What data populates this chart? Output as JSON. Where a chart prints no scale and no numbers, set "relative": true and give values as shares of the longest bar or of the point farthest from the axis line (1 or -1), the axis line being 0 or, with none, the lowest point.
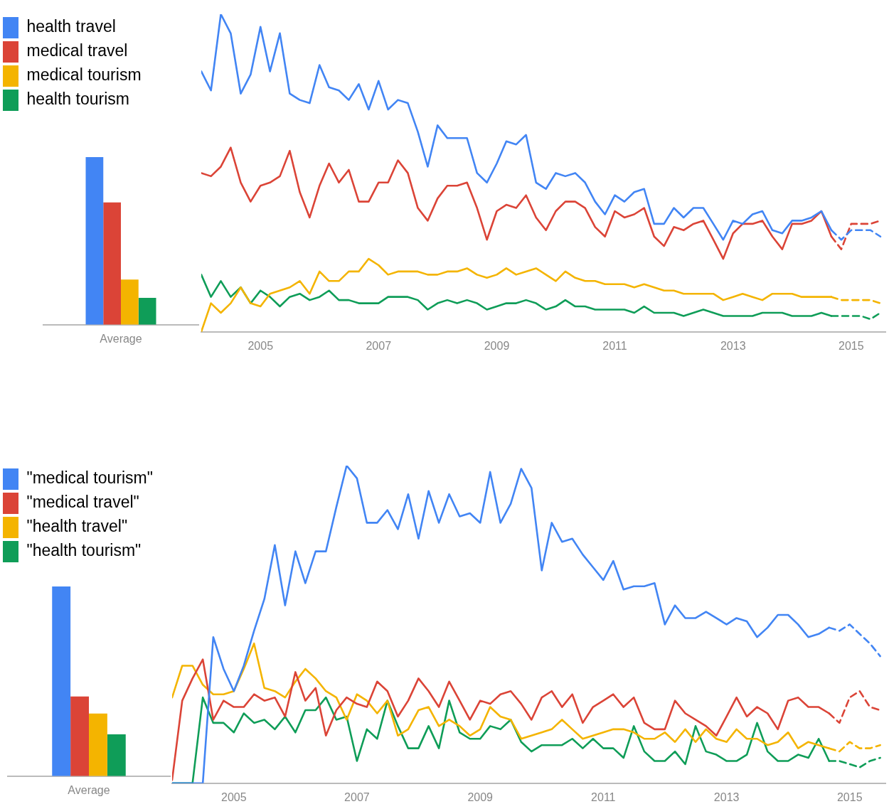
{
  "chart_data": [
    {
      "type": "bar",
      "relative": true,
      "categories": [
        "Average"
      ],
      "series": [
        {
          "color": "#4285f4",
          "values": [
            1
          ]
        },
        {
          "color": "#db4437",
          "values": [
            0.73
          ]
        },
        {
          "color": "#f4b400",
          "values": [
            0.27
          ]
        },
        {
          "color": "#0f9d58",
          "values": [
            0.16
          ]
        }
      ]
    },
    {
      "type": "line",
      "relative": true,
      "marker": "none",
      "legend": "top left",
      "x": [
        "2004-01",
        "2004-03",
        "2004-05",
        "2004-07",
        "2004-09",
        "2004-11",
        "2005-01",
        "2005-03",
        "2005-05",
        "2005-07",
        "2005-09",
        "2005-11",
        "2006-01",
        "2006-03",
        "2006-05",
        "2006-07",
        "2006-09",
        "2006-11",
        "2007-01",
        "2007-03",
        "2007-05",
        "2007-07",
        "2007-09",
        "2007-11",
        "2008-01",
        "2008-03",
        "2008-05",
        "2008-07",
        "2008-09",
        "2008-11",
        "2009-01",
        "2009-03",
        "2009-05",
        "2009-07",
        "2009-09",
        "2009-11",
        "2010-01",
        "2010-03",
        "2010-05",
        "2010-07",
        "2010-09",
        "2010-11",
        "2011-01",
        "2011-03",
        "2011-05",
        "2011-07",
        "2011-09",
        "2011-11",
        "2012-01",
        "2012-03",
        "2012-05",
        "2012-07",
        "2012-09",
        "2012-11",
        "2013-01",
        "2013-03",
        "2013-05",
        "2013-07",
        "2013-09",
        "2013-11",
        "2014-01",
        "2014-03",
        "2014-05",
        "2014-07",
        "2014-09"
      ],
      "xlim": [
        "2004-01",
        "2015-08"
      ],
      "xticks": [
        {
          "value": "2005",
          "label": "2005"
        },
        {
          "value": "2007",
          "label": "2007"
        },
        {
          "value": "2009",
          "label": "2009"
        },
        {
          "value": "2011",
          "label": "2011"
        },
        {
          "value": "2013",
          "label": "2013"
        },
        {
          "value": "2015",
          "label": "2015"
        }
      ],
      "series": [
        {
          "name": "health travel",
          "color": "#4285f4",
          "values": [
            0.82,
            0.76,
            1,
            0.94,
            0.75,
            0.81,
            0.96,
            0.82,
            0.94,
            0.75,
            0.73,
            0.72,
            0.84,
            0.77,
            0.76,
            0.73,
            0.78,
            0.7,
            0.79,
            0.7,
            0.73,
            0.72,
            0.63,
            0.52,
            0.65,
            0.61,
            0.61,
            0.61,
            0.5,
            0.47,
            0.53,
            0.6,
            0.59,
            0.62,
            0.47,
            0.45,
            0.5,
            0.49,
            0.5,
            0.47,
            0.41,
            0.37,
            0.43,
            0.41,
            0.44,
            0.45,
            0.34,
            0.34,
            0.39,
            0.36,
            0.39,
            0.39,
            0.34,
            0.29,
            0.35,
            0.34,
            0.37,
            0.38,
            0.32,
            0.31,
            0.35,
            0.35,
            0.36,
            0.38,
            0.32
          ]
        },
        {
          "name": "medical travel",
          "color": "#db4437",
          "values": [
            0.5,
            0.49,
            0.52,
            0.58,
            0.47,
            0.41,
            0.46,
            0.47,
            0.49,
            0.57,
            0.44,
            0.36,
            0.46,
            0.53,
            0.47,
            0.51,
            0.41,
            0.41,
            0.47,
            0.47,
            0.54,
            0.5,
            0.39,
            0.35,
            0.42,
            0.46,
            0.46,
            0.47,
            0.39,
            0.29,
            0.38,
            0.4,
            0.39,
            0.43,
            0.36,
            0.32,
            0.38,
            0.41,
            0.41,
            0.39,
            0.33,
            0.3,
            0.38,
            0.36,
            0.37,
            0.39,
            0.3,
            0.27,
            0.33,
            0.32,
            0.34,
            0.35,
            0.29,
            0.23,
            0.31,
            0.34,
            0.34,
            0.35,
            0.3,
            0.26,
            0.34,
            0.34,
            0.35,
            0.38,
            0.3
          ]
        },
        {
          "name": "medical tourism",
          "color": "#f4b400",
          "values": [
            0,
            0.09,
            0.06,
            0.09,
            0.14,
            0.09,
            0.08,
            0.12,
            0.13,
            0.14,
            0.16,
            0.12,
            0.19,
            0.16,
            0.16,
            0.19,
            0.19,
            0.23,
            0.21,
            0.18,
            0.19,
            0.19,
            0.19,
            0.18,
            0.18,
            0.19,
            0.19,
            0.2,
            0.18,
            0.17,
            0.18,
            0.2,
            0.18,
            0.19,
            0.2,
            0.18,
            0.16,
            0.19,
            0.17,
            0.16,
            0.16,
            0.15,
            0.15,
            0.15,
            0.14,
            0.15,
            0.14,
            0.13,
            0.13,
            0.12,
            0.12,
            0.12,
            0.12,
            0.1,
            0.11,
            0.12,
            0.11,
            0.1,
            0.12,
            0.12,
            0.12,
            0.11,
            0.11,
            0.11,
            0.11
          ]
        },
        {
          "name": "health tourism",
          "color": "#0f9d58",
          "values": [
            0.18,
            0.11,
            0.16,
            0.11,
            0.14,
            0.09,
            0.13,
            0.11,
            0.08,
            0.11,
            0.12,
            0.1,
            0.11,
            0.13,
            0.1,
            0.1,
            0.09,
            0.09,
            0.09,
            0.11,
            0.11,
            0.11,
            0.1,
            0.07,
            0.09,
            0.1,
            0.09,
            0.1,
            0.09,
            0.07,
            0.08,
            0.09,
            0.09,
            0.1,
            0.09,
            0.07,
            0.08,
            0.1,
            0.08,
            0.08,
            0.07,
            0.07,
            0.07,
            0.07,
            0.06,
            0.08,
            0.06,
            0.06,
            0.06,
            0.05,
            0.06,
            0.07,
            0.06,
            0.05,
            0.05,
            0.05,
            0.05,
            0.06,
            0.06,
            0.06,
            0.05,
            0.05,
            0.05,
            0.06,
            0.05
          ]
        },
        {
          "color": "#4285f4",
          "line_style": "dashed",
          "x": [
            "2014-09",
            "2014-11",
            "2015-01",
            "2015-03",
            "2015-05",
            "2015-07"
          ],
          "values": [
            0.32,
            0.29,
            0.32,
            0.32,
            0.32,
            0.3
          ]
        },
        {
          "color": "#db4437",
          "line_style": "dashed",
          "x": [
            "2014-09",
            "2014-11",
            "2015-01",
            "2015-03",
            "2015-05",
            "2015-07"
          ],
          "values": [
            0.3,
            0.26,
            0.34,
            0.34,
            0.34,
            0.35
          ]
        },
        {
          "color": "#f4b400",
          "line_style": "dashed",
          "x": [
            "2014-09",
            "2014-11",
            "2015-01",
            "2015-03",
            "2015-05",
            "2015-07"
          ],
          "values": [
            0.11,
            0.1,
            0.1,
            0.1,
            0.1,
            0.09
          ]
        },
        {
          "color": "#0f9d58",
          "line_style": "dashed",
          "x": [
            "2014-09",
            "2014-11",
            "2015-01",
            "2015-03",
            "2015-05",
            "2015-07"
          ],
          "values": [
            0.05,
            0.05,
            0.05,
            0.05,
            0.04,
            0.06
          ]
        }
      ]
    },
    {
      "type": "bar",
      "relative": true,
      "categories": [
        "Average"
      ],
      "series": [
        {
          "color": "#4285f4",
          "values": [
            1
          ]
        },
        {
          "color": "#db4437",
          "values": [
            0.42
          ]
        },
        {
          "color": "#f4b400",
          "values": [
            0.33
          ]
        },
        {
          "color": "#0f9d58",
          "values": [
            0.22
          ]
        }
      ]
    },
    {
      "type": "line",
      "relative": true,
      "marker": "none",
      "legend": "top left",
      "x": [
        "2004-01",
        "2004-03",
        "2004-05",
        "2004-07",
        "2004-09",
        "2004-11",
        "2005-01",
        "2005-03",
        "2005-05",
        "2005-07",
        "2005-09",
        "2005-11",
        "2006-01",
        "2006-03",
        "2006-05",
        "2006-07",
        "2006-09",
        "2006-11",
        "2007-01",
        "2007-03",
        "2007-05",
        "2007-07",
        "2007-09",
        "2007-11",
        "2008-01",
        "2008-03",
        "2008-05",
        "2008-07",
        "2008-09",
        "2008-11",
        "2009-01",
        "2009-03",
        "2009-05",
        "2009-07",
        "2009-09",
        "2009-11",
        "2010-01",
        "2010-03",
        "2010-05",
        "2010-07",
        "2010-09",
        "2010-11",
        "2011-01",
        "2011-03",
        "2011-05",
        "2011-07",
        "2011-09",
        "2011-11",
        "2012-01",
        "2012-03",
        "2012-05",
        "2012-07",
        "2012-09",
        "2012-11",
        "2013-01",
        "2013-03",
        "2013-05",
        "2013-07",
        "2013-09",
        "2013-11",
        "2014-01",
        "2014-03",
        "2014-05",
        "2014-07",
        "2014-09"
      ],
      "xlim": [
        "2004-01",
        "2015-08"
      ],
      "xticks": [
        {
          "value": "2005",
          "label": "2005"
        },
        {
          "value": "2007",
          "label": "2007"
        },
        {
          "value": "2009",
          "label": "2009"
        },
        {
          "value": "2011",
          "label": "2011"
        },
        {
          "value": "2013",
          "label": "2013"
        },
        {
          "value": "2015",
          "label": "2015"
        }
      ],
      "series": [
        {
          "name": "\"medical tourism\"",
          "color": "#4285f4",
          "values": [
            0,
            0,
            0,
            0,
            0.46,
            0.36,
            0.29,
            0.37,
            0.48,
            0.58,
            0.75,
            0.56,
            0.73,
            0.63,
            0.73,
            0.73,
            0.87,
            1,
            0.96,
            0.82,
            0.82,
            0.86,
            0.8,
            0.91,
            0.77,
            0.92,
            0.82,
            0.91,
            0.84,
            0.85,
            0.82,
            0.98,
            0.82,
            0.88,
            0.99,
            0.93,
            0.67,
            0.82,
            0.76,
            0.77,
            0.72,
            0.68,
            0.64,
            0.7,
            0.61,
            0.62,
            0.62,
            0.63,
            0.5,
            0.56,
            0.52,
            0.52,
            0.54,
            0.52,
            0.5,
            0.52,
            0.51,
            0.46,
            0.49,
            0.53,
            0.53,
            0.5,
            0.46,
            0.47,
            0.49
          ]
        },
        {
          "name": "\"medical travel\"",
          "color": "#db4437",
          "values": [
            0.01,
            0.26,
            0.33,
            0.39,
            0.2,
            0.26,
            0.24,
            0.24,
            0.28,
            0.26,
            0.27,
            0.21,
            0.35,
            0.26,
            0.3,
            0.15,
            0.23,
            0.27,
            0.25,
            0.24,
            0.32,
            0.29,
            0.21,
            0.26,
            0.33,
            0.29,
            0.24,
            0.32,
            0.26,
            0.2,
            0.26,
            0.25,
            0.28,
            0.29,
            0.25,
            0.2,
            0.27,
            0.29,
            0.24,
            0.28,
            0.19,
            0.24,
            0.26,
            0.28,
            0.24,
            0.27,
            0.19,
            0.17,
            0.17,
            0.26,
            0.22,
            0.2,
            0.18,
            0.15,
            0.21,
            0.27,
            0.21,
            0.24,
            0.22,
            0.17,
            0.26,
            0.27,
            0.24,
            0.24,
            0.22
          ]
        },
        {
          "name": "\"health travel\"",
          "color": "#f4b400",
          "values": [
            0.27,
            0.37,
            0.37,
            0.31,
            0.28,
            0.28,
            0.29,
            0.36,
            0.44,
            0.3,
            0.29,
            0.27,
            0.32,
            0.36,
            0.33,
            0.29,
            0.27,
            0.2,
            0.28,
            0.26,
            0.22,
            0.26,
            0.15,
            0.17,
            0.23,
            0.24,
            0.18,
            0.2,
            0.18,
            0.15,
            0.17,
            0.24,
            0.21,
            0.2,
            0.14,
            0.15,
            0.16,
            0.17,
            0.2,
            0.17,
            0.14,
            0.15,
            0.16,
            0.17,
            0.17,
            0.16,
            0.14,
            0.14,
            0.16,
            0.13,
            0.17,
            0.13,
            0.17,
            0.14,
            0.13,
            0.17,
            0.14,
            0.14,
            0.12,
            0.13,
            0.16,
            0.11,
            0.13,
            0.12,
            0.11
          ]
        },
        {
          "name": "\"health tourism\"",
          "color": "#0f9d58",
          "values": [
            0,
            0,
            0,
            0.27,
            0.19,
            0.19,
            0.16,
            0.22,
            0.19,
            0.2,
            0.17,
            0.21,
            0.16,
            0.23,
            0.23,
            0.27,
            0.2,
            0.21,
            0.07,
            0.17,
            0.14,
            0.26,
            0.18,
            0.11,
            0.11,
            0.18,
            0.11,
            0.26,
            0.16,
            0.14,
            0.14,
            0.18,
            0.17,
            0.2,
            0.13,
            0.1,
            0.12,
            0.12,
            0.12,
            0.14,
            0.11,
            0.14,
            0.11,
            0.11,
            0.08,
            0.18,
            0.1,
            0.07,
            0.07,
            0.1,
            0.06,
            0.18,
            0.1,
            0.09,
            0.07,
            0.07,
            0.09,
            0.19,
            0.1,
            0.07,
            0.07,
            0.09,
            0.08,
            0.14,
            0.07
          ]
        },
        {
          "color": "#4285f4",
          "line_style": "dashed",
          "x": [
            "2014-09",
            "2014-11",
            "2015-01",
            "2015-03",
            "2015-05",
            "2015-07"
          ],
          "values": [
            0.49,
            0.48,
            0.5,
            0.47,
            0.44,
            0.4
          ]
        },
        {
          "color": "#db4437",
          "line_style": "dashed",
          "x": [
            "2014-09",
            "2014-11",
            "2015-01",
            "2015-03",
            "2015-05",
            "2015-07"
          ],
          "values": [
            0.22,
            0.19,
            0.27,
            0.29,
            0.24,
            0.23
          ]
        },
        {
          "color": "#f4b400",
          "line_style": "dashed",
          "x": [
            "2014-09",
            "2014-11",
            "2015-01",
            "2015-03",
            "2015-05",
            "2015-07"
          ],
          "values": [
            0.11,
            0.1,
            0.13,
            0.11,
            0.11,
            0.12
          ]
        },
        {
          "color": "#0f9d58",
          "line_style": "dashed",
          "x": [
            "2014-09",
            "2014-11",
            "2015-01",
            "2015-03",
            "2015-05",
            "2015-07"
          ],
          "values": [
            0.07,
            0.07,
            0.06,
            0.05,
            0.07,
            0.08
          ]
        }
      ]
    }
  ]
}
